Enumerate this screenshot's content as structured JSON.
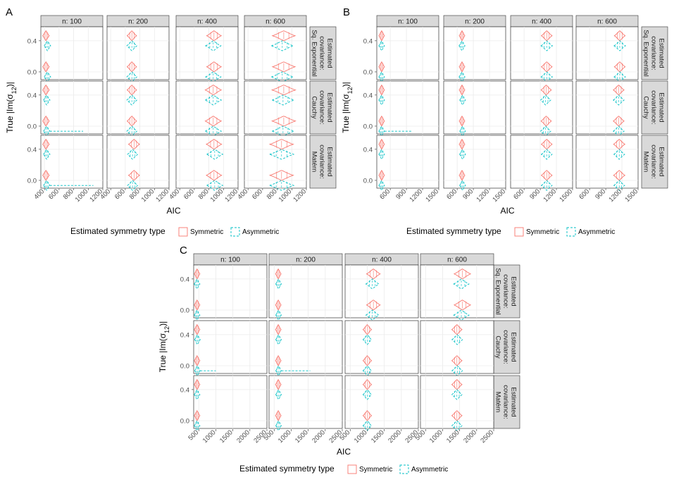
{
  "colors": {
    "symmetric": "#F8766D",
    "asymmetric": "#00BFC4",
    "strip": "#D9D9D9",
    "grid": "#EBEBEB"
  },
  "legend": {
    "title": "Estimated symmetry type",
    "symmetric_label": "Symmetric",
    "asymmetric_label": "Asymmetric"
  },
  "chart_data": [
    {
      "type": "violin",
      "panel_label": "A",
      "xlabel": "AIC",
      "ylabel_prefix": "True |Im(σ",
      "ylabel_sub": "12",
      "ylabel_suffix": ")|",
      "col_strips": [
        "n: 100",
        "n: 200",
        "n: 400",
        "n: 600"
      ],
      "row_strips": [
        [
          "Estimated",
          "covariance:",
          "Sq. Exponential"
        ],
        [
          "Estimated",
          "covariance:",
          "Cauchy"
        ],
        [
          "Estimated",
          "covariance:",
          "Matérn"
        ]
      ],
      "xlim": [
        350,
        1200
      ],
      "x_ticks": [
        400,
        600,
        800,
        1000,
        1200
      ],
      "x_tick_labels": [
        "400",
        "600",
        "800",
        "1000",
        "1200"
      ],
      "y_ticks": [
        0.0,
        0.4
      ],
      "y_tick_labels": [
        "0.0",
        "0.4"
      ],
      "series": [
        "Symmetric",
        "Asymmetric"
      ],
      "violins": [
        [
          [
            {
              "c": 420,
              "w": 90,
              "tail": 0
            },
            {
              "c": 440,
              "w": 90,
              "tail": 0
            }
          ],
          [
            {
              "c": 690,
              "w": 130,
              "tail": 0
            },
            {
              "c": 690,
              "w": 140,
              "tail": 0
            }
          ],
          [
            {
              "c": 870,
              "w": 200,
              "tail": 0
            },
            {
              "c": 860,
              "w": 210,
              "tail": 0
            }
          ],
          [
            {
              "c": 890,
              "w": 310,
              "tail": 0
            },
            {
              "c": 870,
              "w": 300,
              "tail": 0
            }
          ]
        ],
        [
          [
            {
              "c": 420,
              "w": 90,
              "tail": 0
            },
            {
              "c": 430,
              "w": 90,
              "tail": 930
            }
          ],
          [
            {
              "c": 690,
              "w": 130,
              "tail": 0
            },
            {
              "c": 690,
              "w": 140,
              "tail": 0
            }
          ],
          [
            {
              "c": 860,
              "w": 220,
              "tail": 0
            },
            {
              "c": 860,
              "w": 220,
              "tail": 0
            }
          ],
          [
            {
              "c": 890,
              "w": 320,
              "tail": 0
            },
            {
              "c": 880,
              "w": 300,
              "tail": 0
            }
          ]
        ],
        [
          [
            {
              "c": 420,
              "w": 90,
              "tail": 0
            },
            {
              "c": 430,
              "w": 90,
              "tail": 1070
            }
          ],
          [
            {
              "c": 720,
              "w": 150,
              "tail": 0
            },
            {
              "c": 700,
              "w": 140,
              "tail": 0
            }
          ],
          [
            {
              "c": 870,
              "w": 210,
              "tail": 0
            },
            {
              "c": 880,
              "w": 220,
              "tail": 0
            }
          ],
          [
            {
              "c": 860,
              "w": 320,
              "tail": 0
            },
            {
              "c": 860,
              "w": 330,
              "tail": 0
            }
          ]
        ]
      ]
    },
    {
      "type": "violin",
      "panel_label": "B",
      "xlabel": "AIC",
      "ylabel_prefix": "True |Im(σ",
      "ylabel_sub": "12",
      "ylabel_suffix": ")|",
      "col_strips": [
        "n: 100",
        "n: 200",
        "n: 400",
        "n: 600"
      ],
      "row_strips": [
        [
          "Estimated",
          "covariance:",
          "Sq. Exponential"
        ],
        [
          "Estimated",
          "covariance:",
          "Cauchy"
        ],
        [
          "Estimated",
          "covariance:",
          "Matérn"
        ]
      ],
      "xlim": [
        350,
        1500
      ],
      "x_ticks": [
        600,
        900,
        1200,
        1500
      ],
      "x_tick_labels": [
        "600",
        "900",
        "1200",
        "1500"
      ],
      "y_ticks": [
        0.0,
        0.4
      ],
      "y_tick_labels": [
        "0.0",
        "0.4"
      ],
      "series": [
        "Symmetric",
        "Asymmetric"
      ],
      "violins": [
        [
          [
            {
              "c": 440,
              "w": 90,
              "tail": 0
            },
            {
              "c": 440,
              "w": 90,
              "tail": 0
            }
          ],
          [
            {
              "c": 690,
              "w": 100,
              "tail": 0
            },
            {
              "c": 690,
              "w": 110,
              "tail": 0
            }
          ],
          [
            {
              "c": 1020,
              "w": 200,
              "tail": 0
            },
            {
              "c": 1020,
              "w": 210,
              "tail": 0
            }
          ],
          [
            {
              "c": 1160,
              "w": 200,
              "tail": 0
            },
            {
              "c": 1160,
              "w": 210,
              "tail": 0
            }
          ]
        ],
        [
          [
            {
              "c": 440,
              "w": 90,
              "tail": 0
            },
            {
              "c": 440,
              "w": 90,
              "tail": 1000
            }
          ],
          [
            {
              "c": 690,
              "w": 100,
              "tail": 0
            },
            {
              "c": 700,
              "w": 100,
              "tail": 0
            }
          ],
          [
            {
              "c": 1010,
              "w": 190,
              "tail": 0
            },
            {
              "c": 1000,
              "w": 190,
              "tail": 0
            }
          ],
          [
            {
              "c": 1140,
              "w": 200,
              "tail": 0
            },
            {
              "c": 1140,
              "w": 200,
              "tail": 0
            }
          ]
        ],
        [
          [
            {
              "c": 440,
              "w": 90,
              "tail": 0
            },
            {
              "c": 440,
              "w": 90,
              "tail": 0
            }
          ],
          [
            {
              "c": 690,
              "w": 100,
              "tail": 0
            },
            {
              "c": 700,
              "w": 110,
              "tail": 0
            }
          ],
          [
            {
              "c": 1020,
              "w": 200,
              "tail": 0
            },
            {
              "c": 1020,
              "w": 200,
              "tail": 0
            }
          ],
          [
            {
              "c": 1150,
              "w": 210,
              "tail": 0
            },
            {
              "c": 1150,
              "w": 200,
              "tail": 0
            }
          ]
        ]
      ]
    },
    {
      "type": "violin",
      "panel_label": "C",
      "xlabel": "AIC",
      "ylabel_prefix": "True |Im(σ",
      "ylabel_sub": "12",
      "ylabel_suffix": ")|",
      "col_strips": [
        "n: 100",
        "n: 200",
        "n: 400",
        "n: 600"
      ],
      "row_strips": [
        [
          "Estimated",
          "covariance:",
          "Sq. Exponential"
        ],
        [
          "Estimated",
          "covariance:",
          "Cauchy"
        ],
        [
          "Estimated",
          "covariance:",
          "Matérn"
        ]
      ],
      "xlim": [
        350,
        2500
      ],
      "x_ticks": [
        500,
        1000,
        1500,
        2000,
        2500
      ],
      "x_tick_labels": [
        "500",
        "1000",
        "1500",
        "2000",
        "2500"
      ],
      "y_ticks": [
        0.0,
        0.4
      ],
      "y_tick_labels": [
        "0.0",
        "0.4"
      ],
      "series": [
        "Symmetric",
        "Asymmetric"
      ],
      "violins": [
        [
          [
            {
              "c": 450,
              "w": 120,
              "tail": 0
            },
            {
              "c": 450,
              "w": 120,
              "tail": 0
            }
          ],
          [
            {
              "c": 620,
              "w": 150,
              "tail": 0
            },
            {
              "c": 630,
              "w": 150,
              "tail": 0
            }
          ],
          [
            {
              "c": 1180,
              "w": 400,
              "tail": 0
            },
            {
              "c": 1150,
              "w": 380,
              "tail": 0
            }
          ],
          [
            {
              "c": 1580,
              "w": 480,
              "tail": 0
            },
            {
              "c": 1550,
              "w": 450,
              "tail": 0
            }
          ]
        ],
        [
          [
            {
              "c": 450,
              "w": 120,
              "tail": 0
            },
            {
              "c": 460,
              "w": 130,
              "tail": 1000
            }
          ],
          [
            {
              "c": 620,
              "w": 150,
              "tail": 0
            },
            {
              "c": 630,
              "w": 150,
              "tail": 1560
            }
          ],
          [
            {
              "c": 1000,
              "w": 250,
              "tail": 0
            },
            {
              "c": 1000,
              "w": 250,
              "tail": 0
            }
          ],
          [
            {
              "c": 1420,
              "w": 300,
              "tail": 0
            },
            {
              "c": 1430,
              "w": 310,
              "tail": 0
            }
          ]
        ],
        [
          [
            {
              "c": 450,
              "w": 120,
              "tail": 0
            },
            {
              "c": 450,
              "w": 120,
              "tail": 0
            }
          ],
          [
            {
              "c": 620,
              "w": 150,
              "tail": 0
            },
            {
              "c": 630,
              "w": 150,
              "tail": 0
            }
          ],
          [
            {
              "c": 1000,
              "w": 250,
              "tail": 0
            },
            {
              "c": 1000,
              "w": 250,
              "tail": 0
            }
          ],
          [
            {
              "c": 1420,
              "w": 300,
              "tail": 0
            },
            {
              "c": 1420,
              "w": 300,
              "tail": 0
            }
          ]
        ]
      ]
    }
  ]
}
